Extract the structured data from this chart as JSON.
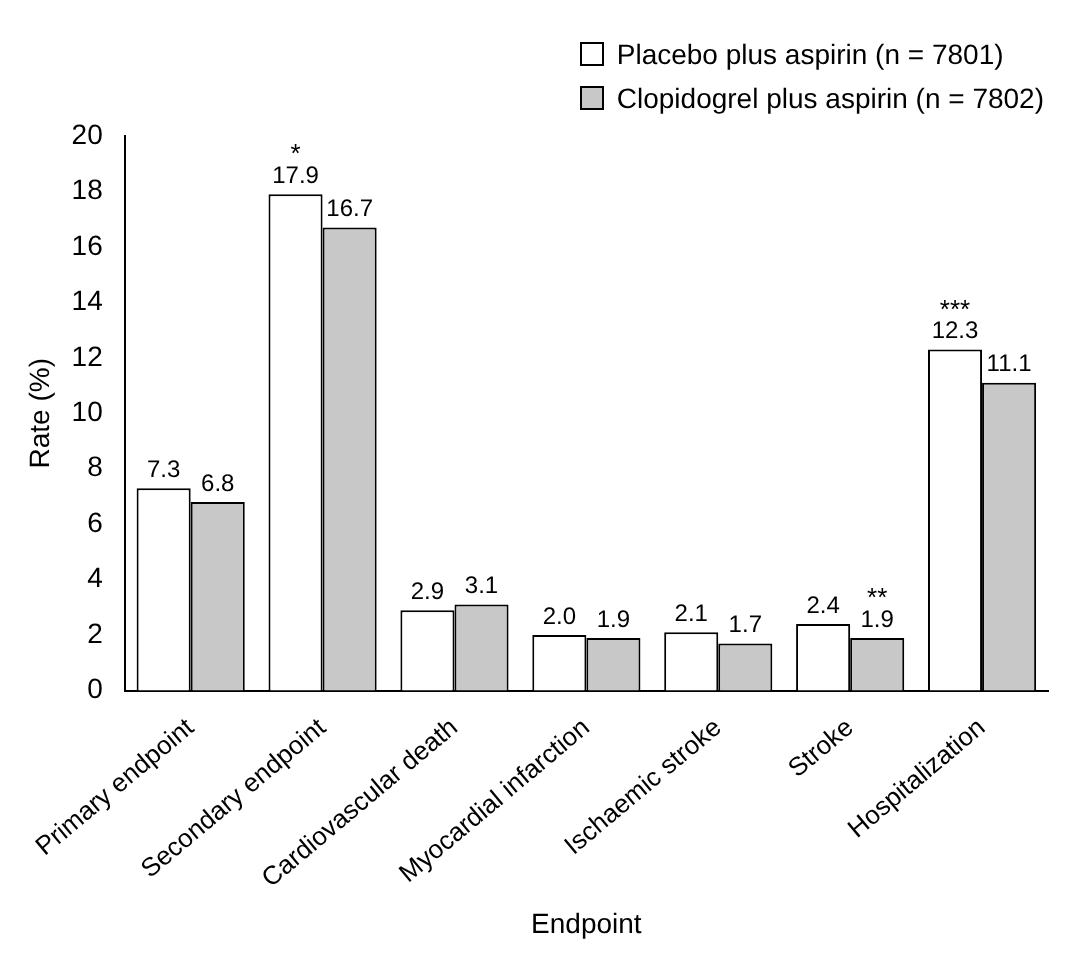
{
  "chart_data": {
    "type": "bar",
    "xlabel": "Endpoint",
    "ylabel": "Rate (%)",
    "categories": [
      "Primary endpoint",
      "Secondary endpoint",
      "Cardiovascular death",
      "Myocardial infarction",
      "Ischaemic stroke",
      "Stroke",
      "Hospitalization"
    ],
    "series": [
      {
        "name": "Placebo plus aspirin (n = 7801)",
        "color": "#ffffff",
        "values": [
          7.3,
          17.9,
          2.9,
          2.0,
          2.1,
          2.4,
          12.3
        ],
        "value_labels": [
          "7.3",
          "17.9",
          "2.9",
          "2.0",
          "2.1",
          "2.4",
          "12.3"
        ]
      },
      {
        "name": "Clopidogrel plus aspirin (n = 7802)",
        "color": "#c8c8c8",
        "values": [
          6.8,
          16.7,
          3.1,
          1.9,
          1.7,
          1.9,
          11.1
        ],
        "value_labels": [
          "6.8",
          "16.7",
          "3.1",
          "1.9",
          "1.7",
          "1.9",
          "11.1"
        ]
      }
    ],
    "ylim": [
      0,
      20
    ],
    "yticks": [
      0,
      2,
      4,
      6,
      8,
      10,
      12,
      14,
      16,
      18,
      20
    ],
    "legend": "top right",
    "grid": false,
    "annotations": [
      {
        "text": "*",
        "x": "Secondary endpoint",
        "y": 17.9
      },
      {
        "text": "**",
        "x": "Stroke",
        "y": 1.9
      },
      {
        "text": "***",
        "x": "Hospitalization",
        "y": 12.3
      }
    ]
  }
}
